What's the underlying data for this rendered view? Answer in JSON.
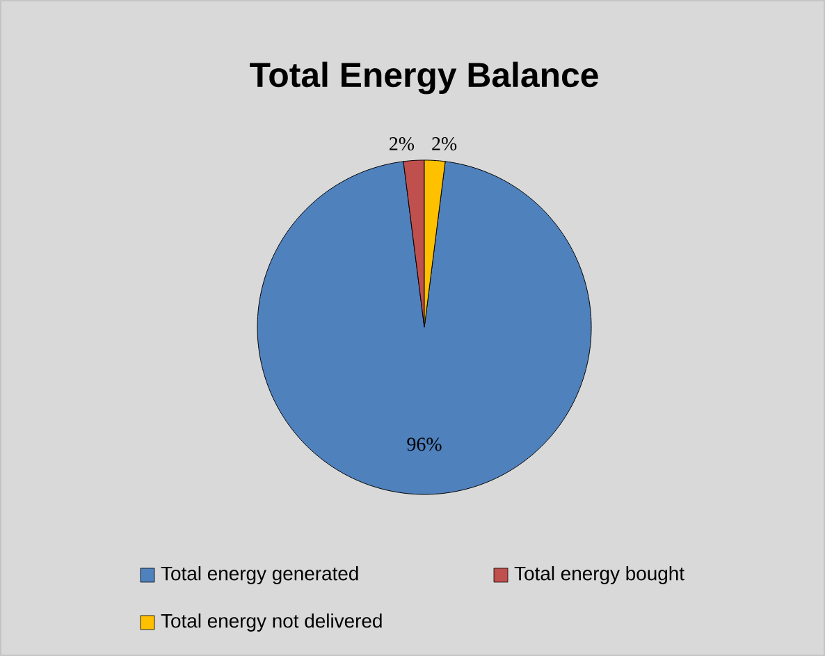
{
  "chart_data": {
    "type": "pie",
    "title": "Total Energy Balance",
    "categories": [
      "Total energy generated",
      "Total energy bought",
      "Total energy not delivered"
    ],
    "values": [
      96,
      2,
      2
    ],
    "colors": [
      "#4f81bd",
      "#c0504d",
      "#ffc000"
    ],
    "value_labels": [
      "96%",
      "2%",
      "2%"
    ],
    "legend": "bottom"
  }
}
